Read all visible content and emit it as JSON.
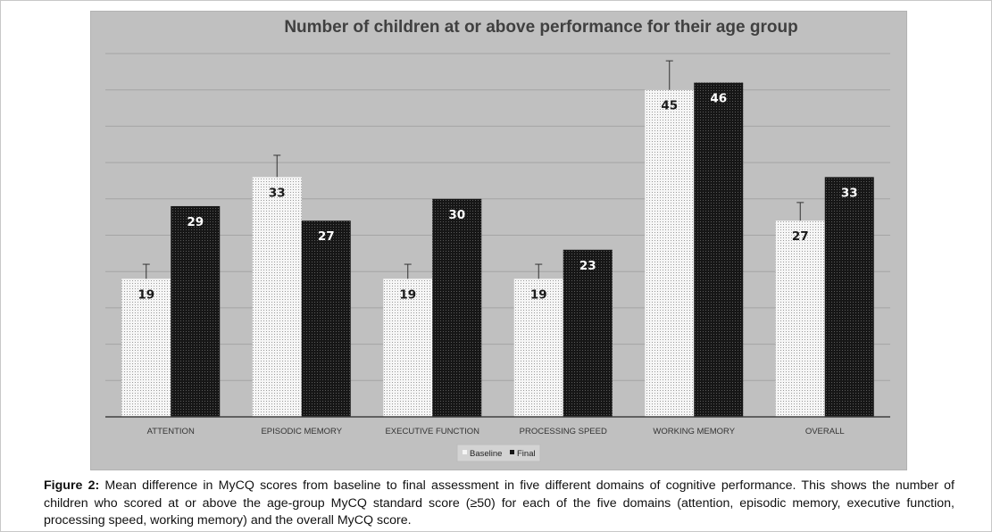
{
  "figure": {
    "label": "Figure 2:",
    "caption": "Mean difference in MyCQ scores from baseline to final assessment in five different domains of cognitive performance. This shows the number of children who scored at or above the age-group MyCQ standard score (≥50) for each of the five domains (attention, episodic memory, executive function, processing speed, working memory) and the overall MyCQ score."
  },
  "chart_data": {
    "type": "bar",
    "title": "Number of children at or above performance for their age group",
    "xlabel": "",
    "ylabel": "",
    "categories": [
      "ATTENTION",
      "EPISODIC MEMORY",
      "EXECUTIVE FUNCTION",
      "PROCESSING SPEED",
      "WORKING MEMORY",
      "OVERALL"
    ],
    "series": [
      {
        "name": "Baseline",
        "values": [
          19,
          33,
          19,
          19,
          45,
          27
        ],
        "labels": [
          "19",
          "33",
          "19",
          "19",
          "45",
          "27"
        ],
        "error": [
          2,
          3,
          2,
          2,
          4,
          2.5
        ],
        "color": "#f5f5f5",
        "pattern": "dots"
      },
      {
        "name": "Final",
        "values": [
          29,
          27,
          30,
          23,
          46,
          33
        ],
        "labels": [
          "29",
          "27",
          "30",
          "23",
          "46",
          "33"
        ],
        "error": [
          0,
          0,
          0,
          0,
          0,
          0
        ],
        "color": "#1a1a1a",
        "pattern": "grid"
      }
    ],
    "ylim": [
      0,
      50
    ],
    "grid": true,
    "legend": "bottom-center",
    "background": "#c0c0c0"
  }
}
